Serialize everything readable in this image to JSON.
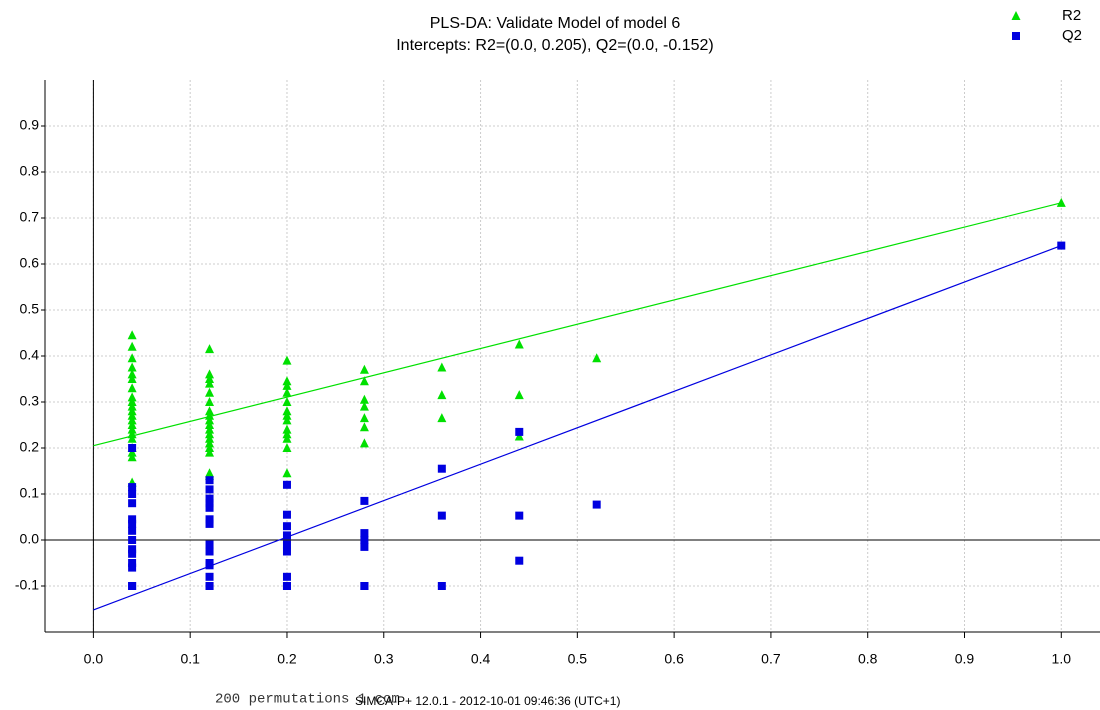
{
  "chart_data": {
    "type": "scatter",
    "title": "PLS-DA: Validate Model of model 6",
    "subtitle": "Intercepts: R2=(0.0, 0.205), Q2=(0.0, -0.152)",
    "footer": "200 permutations 1 com",
    "software": "SIMCA-P+ 12.0.1 - 2012-10-01 09:46:36 (UTC+1)",
    "xlim": [
      -0.05,
      1.04
    ],
    "ylim": [
      -0.2,
      1.0
    ],
    "xticks": [
      {
        "value": 0,
        "label": "0.0"
      },
      0.1,
      0.2,
      0.3,
      0.4,
      0.5,
      0.6,
      0.7,
      0.8,
      0.9,
      {
        "value": 1,
        "label": "1.0"
      }
    ],
    "yticks": [
      -0.1,
      {
        "value": 0,
        "label": "0.0"
      },
      0.1,
      0.2,
      0.3,
      0.4,
      0.5,
      0.6,
      0.7,
      0.8,
      0.9
    ],
    "grid": true,
    "legend": "top-right",
    "series": [
      {
        "name": "R2",
        "color": "#00e000",
        "marker": "triangle",
        "x": [
          0.04,
          0.04,
          0.04,
          0.04,
          0.04,
          0.04,
          0.04,
          0.04,
          0.04,
          0.04,
          0.04,
          0.04,
          0.04,
          0.04,
          0.04,
          0.04,
          0.04,
          0.04,
          0.04,
          0.04,
          0.04,
          0.12,
          0.12,
          0.12,
          0.12,
          0.12,
          0.12,
          0.12,
          0.12,
          0.12,
          0.12,
          0.12,
          0.12,
          0.12,
          0.12,
          0.12,
          0.12,
          0.12,
          0.12,
          0.2,
          0.2,
          0.2,
          0.2,
          0.2,
          0.2,
          0.2,
          0.2,
          0.2,
          0.2,
          0.2,
          0.2,
          0.2,
          0.28,
          0.28,
          0.28,
          0.28,
          0.28,
          0.28,
          0.28,
          0.36,
          0.36,
          0.36,
          0.44,
          0.44,
          0.44,
          0.52,
          1.0
        ],
        "values": [
          0.445,
          0.42,
          0.395,
          0.375,
          0.36,
          0.35,
          0.33,
          0.31,
          0.3,
          0.29,
          0.28,
          0.27,
          0.26,
          0.25,
          0.24,
          0.23,
          0.22,
          0.2,
          0.19,
          0.18,
          0.125,
          0.415,
          0.36,
          0.35,
          0.34,
          0.32,
          0.3,
          0.28,
          0.27,
          0.26,
          0.25,
          0.24,
          0.23,
          0.22,
          0.21,
          0.2,
          0.19,
          0.145,
          0.14,
          0.39,
          0.345,
          0.335,
          0.32,
          0.3,
          0.28,
          0.27,
          0.26,
          0.24,
          0.23,
          0.22,
          0.2,
          0.145,
          0.37,
          0.345,
          0.305,
          0.29,
          0.265,
          0.245,
          0.21,
          0.375,
          0.315,
          0.265,
          0.425,
          0.315,
          0.225,
          0.395,
          0.733
        ],
        "fit": {
          "x": [
            0,
            1
          ],
          "values": [
            0.205,
            0.733
          ]
        }
      },
      {
        "name": "Q2",
        "color": "#0000e0",
        "marker": "square",
        "x": [
          0.04,
          0.04,
          0.04,
          0.04,
          0.04,
          0.04,
          0.04,
          0.04,
          0.04,
          0.04,
          0.04,
          0.04,
          0.04,
          0.04,
          0.12,
          0.12,
          0.12,
          0.12,
          0.12,
          0.12,
          0.12,
          0.12,
          0.12,
          0.12,
          0.12,
          0.12,
          0.12,
          0.12,
          0.2,
          0.2,
          0.2,
          0.2,
          0.2,
          0.2,
          0.2,
          0.2,
          0.2,
          0.28,
          0.28,
          0.28,
          0.28,
          0.28,
          0.28,
          0.36,
          0.36,
          0.36,
          0.44,
          0.44,
          0.44,
          0.52,
          1.0
        ],
        "values": [
          0.2,
          0.115,
          0.1,
          0.08,
          0.045,
          0.035,
          0.02,
          0,
          -0.02,
          -0.03,
          -0.05,
          -0.06,
          -0.1,
          -0.1,
          0.13,
          0.11,
          0.09,
          0.08,
          0.07,
          0.045,
          0.035,
          -0.01,
          -0.025,
          -0.05,
          -0.055,
          -0.08,
          -0.1,
          -0.1,
          0.12,
          0.055,
          0.03,
          0.01,
          -0.01,
          -0.025,
          -0.08,
          -0.1,
          -0.1,
          0.085,
          0.015,
          0,
          -0.015,
          -0.1,
          -0.1,
          0.155,
          0.053,
          -0.1,
          0.235,
          0.053,
          -0.045,
          0.077,
          0.64
        ],
        "fit": {
          "x": [
            0,
            1
          ],
          "values": [
            -0.152,
            0.64
          ]
        }
      }
    ]
  }
}
